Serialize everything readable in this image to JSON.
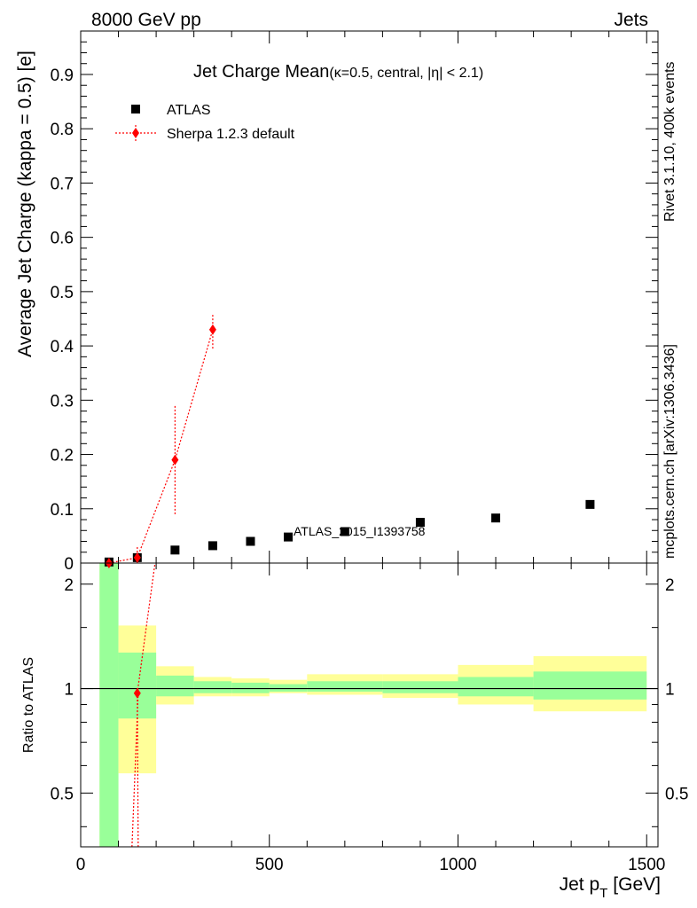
{
  "header": {
    "left": "8000 GeV pp",
    "right": "Jets"
  },
  "side_labels": {
    "rivet": "Rivet 3.1.10,  400k events",
    "mcplots": "mcplots.cern.ch [arXiv:1306.3436]"
  },
  "watermark": "ATLAS_2015_I1393758",
  "chart_data": [
    {
      "type": "scatter",
      "title_main": "Jet Charge Mean",
      "title_sub": "(κ=0.5, central, |η| < 2.1)",
      "xlabel": "Jet p",
      "xlabel_sub": "T",
      "xlabel_unit": "[GeV]",
      "ylabel": "Average Jet Charge (kappa = 0.5) [e]",
      "xlim": [
        0,
        1530
      ],
      "ylim": [
        0,
        0.98
      ],
      "x_ticks": [
        "0",
        "500",
        "1000",
        "1500"
      ],
      "y_ticks": [
        "0",
        "0.1",
        "0.2",
        "0.3",
        "0.4",
        "0.5",
        "0.6",
        "0.7",
        "0.8",
        "0.9"
      ],
      "legend_position": "top-left",
      "series": [
        {
          "name": "ATLAS",
          "color": "#000000",
          "marker": "square",
          "x": [
            75,
            150,
            250,
            350,
            450,
            550,
            700,
            900,
            1100,
            1350
          ],
          "y": [
            0.002,
            0.01,
            0.024,
            0.032,
            0.04,
            0.048,
            0.058,
            0.075,
            0.083,
            0.108
          ]
        },
        {
          "name": "Sherpa 1.2.3 default",
          "color": "#ff0000",
          "marker": "diamond",
          "line": "dotted",
          "x": [
            75,
            150,
            250,
            350
          ],
          "y": [
            0.0,
            0.01,
            0.19,
            0.43
          ],
          "y_err_low": [
            0.0,
            0.01,
            0.1,
            0.035
          ],
          "y_err_high": [
            0.0,
            0.02,
            0.1,
            0.028
          ]
        }
      ]
    },
    {
      "type": "area",
      "ylabel": "Ratio to ATLAS",
      "xlim": [
        0,
        1530
      ],
      "ylim": [
        0.35,
        2.3
      ],
      "y_ticks": [
        "0.5",
        "1",
        "2"
      ],
      "reference_line": 1,
      "bins": [
        {
          "xlow": 50,
          "xhigh": 100,
          "inner": [
            0.35,
            2.3
          ],
          "outer": [
            0.35,
            2.3
          ]
        },
        {
          "xlow": 100,
          "xhigh": 200,
          "inner": [
            0.82,
            1.27
          ],
          "outer": [
            0.57,
            1.52
          ]
        },
        {
          "xlow": 200,
          "xhigh": 300,
          "inner": [
            0.95,
            1.09
          ],
          "outer": [
            0.9,
            1.16
          ]
        },
        {
          "xlow": 300,
          "xhigh": 400,
          "inner": [
            0.97,
            1.05
          ],
          "outer": [
            0.95,
            1.08
          ]
        },
        {
          "xlow": 400,
          "xhigh": 500,
          "inner": [
            0.97,
            1.04
          ],
          "outer": [
            0.95,
            1.07
          ]
        },
        {
          "xlow": 500,
          "xhigh": 600,
          "inner": [
            0.98,
            1.03
          ],
          "outer": [
            0.97,
            1.06
          ]
        },
        {
          "xlow": 600,
          "xhigh": 800,
          "inner": [
            0.98,
            1.05
          ],
          "outer": [
            0.96,
            1.1
          ]
        },
        {
          "xlow": 800,
          "xhigh": 1000,
          "inner": [
            0.97,
            1.05
          ],
          "outer": [
            0.94,
            1.1
          ]
        },
        {
          "xlow": 1000,
          "xhigh": 1200,
          "inner": [
            0.95,
            1.08
          ],
          "outer": [
            0.9,
            1.17
          ]
        },
        {
          "xlow": 1200,
          "xhigh": 1500,
          "inner": [
            0.93,
            1.12
          ],
          "outer": [
            0.86,
            1.24
          ]
        }
      ],
      "series": [
        {
          "name": "Sherpa 1.2.3 default",
          "color": "#ff0000",
          "x": [
            150
          ],
          "y": [
            0.97
          ]
        }
      ],
      "inner_band_color": "#99ff99",
      "outer_band_color": "#ffff99"
    }
  ]
}
